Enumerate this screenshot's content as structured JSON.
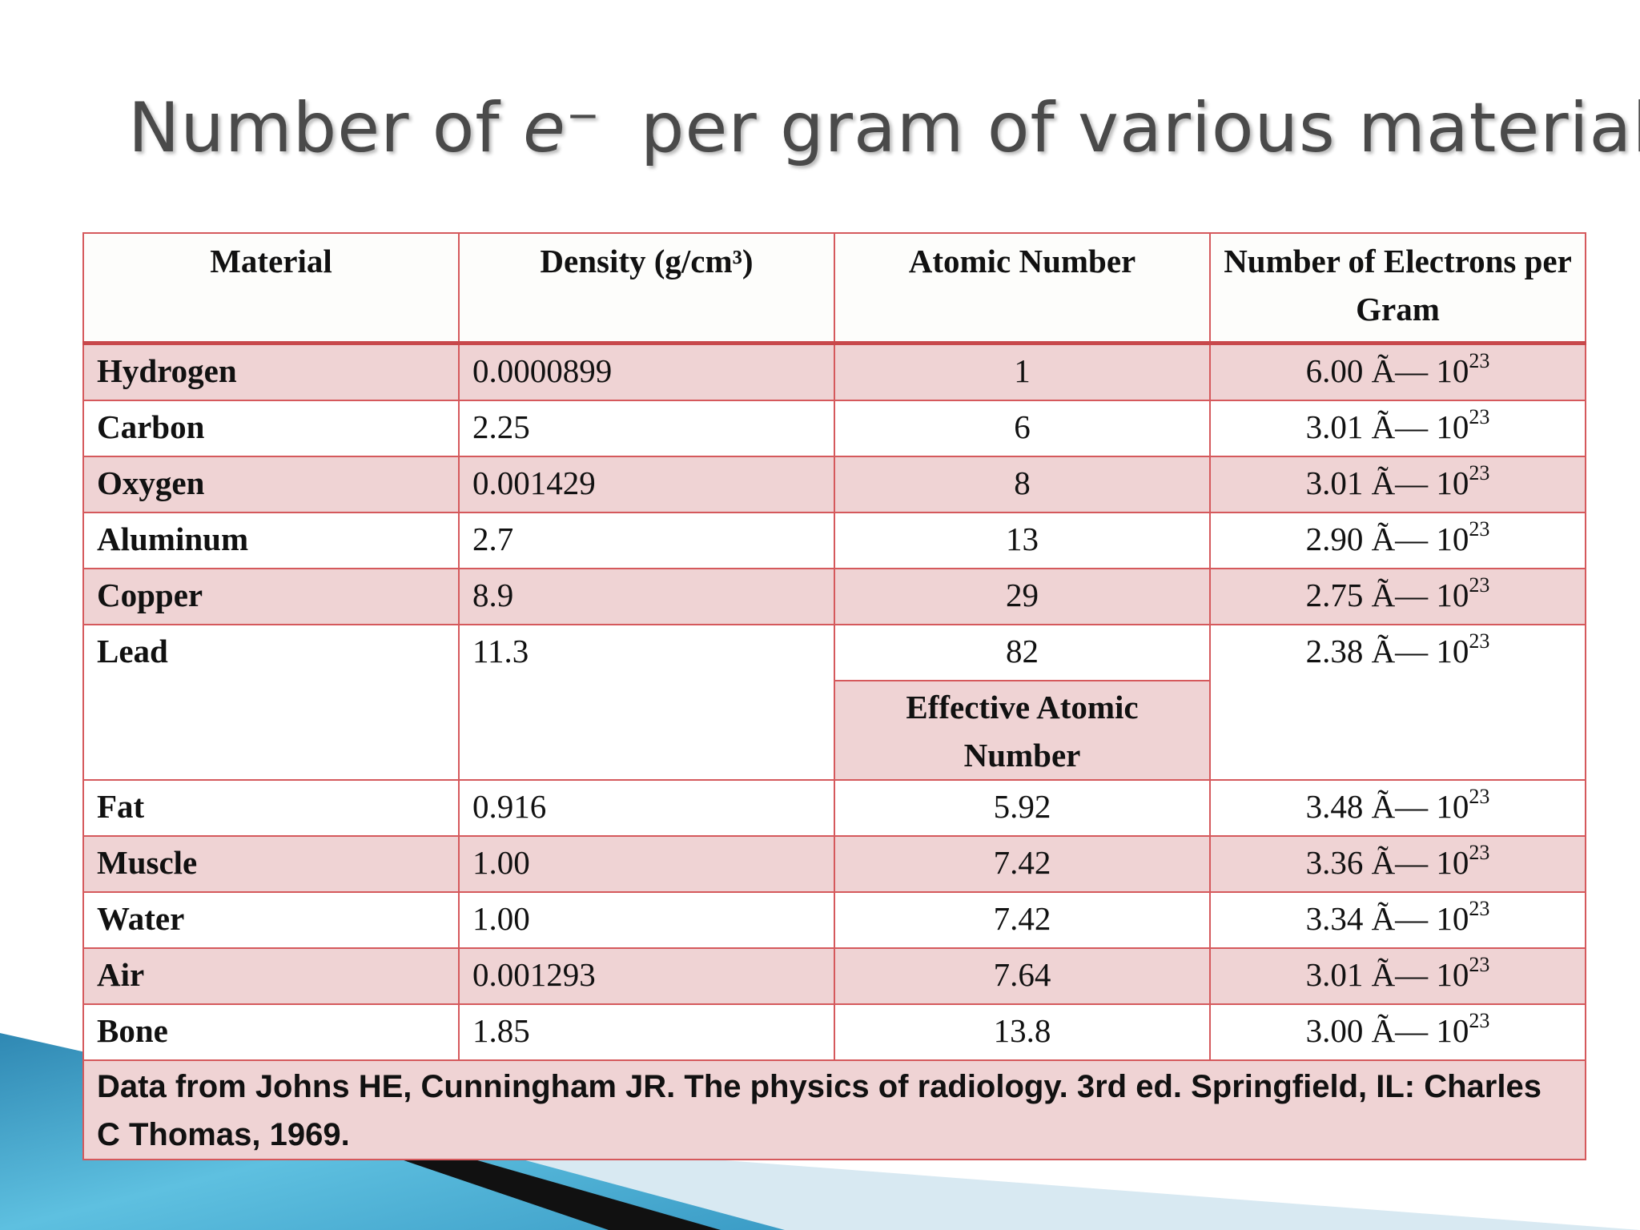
{
  "slide": {
    "title_prefix": "Number of ",
    "title_symbol": "e",
    "title_superscript": "−",
    "title_suffix": "per gram of various materials"
  },
  "table": {
    "headers": [
      "Material",
      "Density (g/cm³)",
      "Atomic Number",
      "Number of Electrons per Gram"
    ],
    "exponent": "23",
    "rows": [
      {
        "material": "Hydrogen",
        "density": "0.0000899",
        "atomic": "1",
        "electrons": "6.00 Ã— 10"
      },
      {
        "material": "Carbon",
        "density": "2.25",
        "atomic": "6",
        "electrons": "3.01 Ã— 10"
      },
      {
        "material": "Oxygen",
        "density": "0.001429",
        "atomic": "8",
        "electrons": "3.01 Ã— 10"
      },
      {
        "material": "Aluminum",
        "density": "2.7",
        "atomic": "13",
        "electrons": "2.90 Ã— 10"
      },
      {
        "material": "Copper",
        "density": "8.9",
        "atomic": "29",
        "electrons": "2.75 Ã— 10"
      },
      {
        "material": "Lead",
        "density": "11.3",
        "atomic": "82",
        "electrons": "2.38 Ã— 10"
      }
    ],
    "effective_header": "Effective Atomic Number",
    "rows2": [
      {
        "material": "Fat",
        "density": "0.916",
        "atomic": "5.92",
        "electrons": "3.48 Ã— 10"
      },
      {
        "material": "Muscle",
        "density": "1.00",
        "atomic": "7.42",
        "electrons": "3.36 Ã— 10"
      },
      {
        "material": "Water",
        "density": "1.00",
        "atomic": "7.42",
        "electrons": "3.34 Ã— 10"
      },
      {
        "material": "Air",
        "density": "0.001293",
        "atomic": "7.64",
        "electrons": "3.01 Ã— 10"
      },
      {
        "material": "Bone",
        "density": "1.85",
        "atomic": "13.8",
        "electrons": "3.00 Ã— 10"
      }
    ],
    "footnote": "Data from Johns HE, Cunningham JR. The physics of radiology. 3rd ed. Springfield, IL: Charles C Thomas, 1969."
  },
  "theme": {
    "border_color": "#d5595c",
    "band_color": "#efd3d4",
    "deco_blue": "#3a9ec7",
    "deco_black": "#111111"
  }
}
